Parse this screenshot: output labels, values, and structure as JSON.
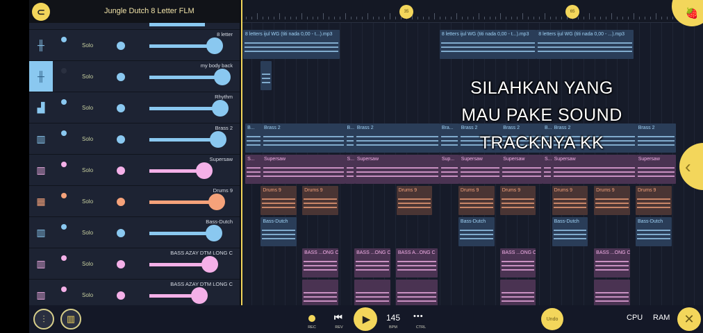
{
  "header": {
    "title": "Jungle Dutch 8 Letter FLM",
    "logo_icon": "magnet-icon"
  },
  "colors": {
    "accent": "#f3d65b",
    "blue": "#8ac8f0",
    "pink": "#f4b0e8",
    "orange": "#f5a27a"
  },
  "tracks": [
    {
      "name": "8 letter",
      "icon": "waveform-icon",
      "color": "blue",
      "solo": "Solo",
      "volume": 0.88,
      "selected": false
    },
    {
      "name": "my body back",
      "icon": "waveform-icon",
      "color": "blue",
      "solo": "Solo",
      "volume": 0.98,
      "selected": true
    },
    {
      "name": "Rhythm",
      "icon": "bars-icon",
      "color": "blue",
      "solo": "Solo",
      "volume": 0.95,
      "selected": false
    },
    {
      "name": "Brass 2",
      "icon": "piano-icon",
      "color": "blue",
      "solo": "Solo",
      "volume": 0.92,
      "selected": false
    },
    {
      "name": "Supersaw",
      "icon": "piano-icon",
      "color": "pink",
      "solo": "Solo",
      "volume": 0.73,
      "selected": false
    },
    {
      "name": "Drums 9",
      "icon": "drum-icon",
      "color": "orange",
      "solo": "Solo",
      "volume": 0.9,
      "selected": false
    },
    {
      "name": "Bass-Dutch",
      "icon": "piano-icon",
      "color": "blue",
      "solo": "Solo",
      "volume": 0.87,
      "selected": false
    },
    {
      "name": "BASS AZAY DTM LONG C",
      "icon": "piano-icon",
      "color": "pink",
      "solo": "Solo",
      "volume": 0.81,
      "selected": false
    },
    {
      "name": "BASS AZAY DTM LONG C",
      "icon": "piano-icon",
      "color": "pink",
      "solo": "Solo",
      "volume": 0.67,
      "selected": false
    }
  ],
  "ruler": {
    "markers": [
      "35",
      "65"
    ]
  },
  "clips": [
    [
      {
        "start": 5.5,
        "len": 17.5,
        "label": "8 letters ijul WG (titi nada 0,00 - t...).mp3"
      },
      {
        "start": 41,
        "len": 17.5,
        "label": "8 letters ijul WG (titi nada 0,00 - t...).mp3"
      },
      {
        "start": 58.5,
        "len": 17.5,
        "label": "8 letters ijul WG (titi nada 0,00 - ...).mp3"
      }
    ],
    [
      {
        "start": 8.7,
        "len": 2,
        "label": ""
      }
    ],
    [],
    [
      {
        "start": 5.9,
        "len": 3,
        "label": "B..."
      },
      {
        "start": 8.9,
        "len": 15,
        "label": "Brass 2"
      },
      {
        "start": 23.9,
        "len": 1.8,
        "label": "B..."
      },
      {
        "start": 25.7,
        "len": 15.3,
        "label": "Brass 2"
      },
      {
        "start": 41,
        "len": 3.5,
        "label": "Bra..."
      },
      {
        "start": 44.5,
        "len": 7.6,
        "label": "Brass 2"
      },
      {
        "start": 52.1,
        "len": 7.5,
        "label": "Brass 2"
      },
      {
        "start": 59.6,
        "len": 1.7,
        "label": "B..."
      },
      {
        "start": 61.3,
        "len": 15.2,
        "label": "Brass 2"
      },
      {
        "start": 76.5,
        "len": 7.2,
        "label": "Brass 2"
      }
    ],
    [
      {
        "start": 5.9,
        "len": 3,
        "label": "S..."
      },
      {
        "start": 8.9,
        "len": 15,
        "label": "Supersaw"
      },
      {
        "start": 23.9,
        "len": 1.8,
        "label": "S..."
      },
      {
        "start": 25.7,
        "len": 15.3,
        "label": "Supersaw"
      },
      {
        "start": 41,
        "len": 3.5,
        "label": "Sup..."
      },
      {
        "start": 44.5,
        "len": 7.6,
        "label": "Supersaw"
      },
      {
        "start": 52.1,
        "len": 7.5,
        "label": "Supersaw"
      },
      {
        "start": 59.6,
        "len": 1.7,
        "label": "S..."
      },
      {
        "start": 61.3,
        "len": 15.2,
        "label": "Supersaw"
      },
      {
        "start": 76.5,
        "len": 7.2,
        "label": "Supersaw"
      }
    ],
    [
      {
        "start": 8.7,
        "len": 6.5,
        "label": "Drums 9"
      },
      {
        "start": 16.2,
        "len": 6.5,
        "label": "Drums 9"
      },
      {
        "start": 33.2,
        "len": 6.5,
        "label": "Drums 9"
      },
      {
        "start": 44.4,
        "len": 6.5,
        "label": "Drums 9"
      },
      {
        "start": 51.9,
        "len": 6.5,
        "label": "Drums 9"
      },
      {
        "start": 61.3,
        "len": 6.5,
        "label": "Drums 9"
      },
      {
        "start": 68.9,
        "len": 6.5,
        "label": "Drums 9"
      },
      {
        "start": 76.4,
        "len": 6.5,
        "label": "Drums 9"
      }
    ],
    [
      {
        "start": 8.7,
        "len": 6.5,
        "label": "Bass-Dutch"
      },
      {
        "start": 44.4,
        "len": 6.5,
        "label": "Bass-Dutch"
      },
      {
        "start": 61.3,
        "len": 6.5,
        "label": "Bass-Dutch"
      },
      {
        "start": 76.4,
        "len": 6.5,
        "label": "Bass-Dutch"
      }
    ],
    [
      {
        "start": 16.2,
        "len": 6.5,
        "label": "BASS ...ONG C"
      },
      {
        "start": 25.6,
        "len": 6.5,
        "label": "BASS ...ONG C"
      },
      {
        "start": 33.1,
        "len": 7.5,
        "label": "BASS A...ONG C"
      },
      {
        "start": 51.9,
        "len": 6.5,
        "label": "BASS ...ONG C"
      },
      {
        "start": 68.9,
        "len": 6.5,
        "label": "BASS ...ONG C"
      }
    ],
    [
      {
        "start": 16.2,
        "len": 6.5,
        "label": ""
      },
      {
        "start": 25.6,
        "len": 6.5,
        "label": ""
      },
      {
        "start": 33.1,
        "len": 7.5,
        "label": ""
      },
      {
        "start": 51.9,
        "len": 6.5,
        "label": ""
      },
      {
        "start": 68.9,
        "len": 6.5,
        "label": ""
      }
    ]
  ],
  "overlay": [
    "SILAHKAN YANG",
    "MAU PAKE SOUND",
    "TRACKNYA KK"
  ],
  "transport": {
    "rec": "REC",
    "rev": "REV",
    "bpm_value": "145",
    "bpm": "BPM",
    "ctrl": "CTRL",
    "undo": "Undo",
    "cpu": "CPU",
    "ram": "RAM"
  }
}
